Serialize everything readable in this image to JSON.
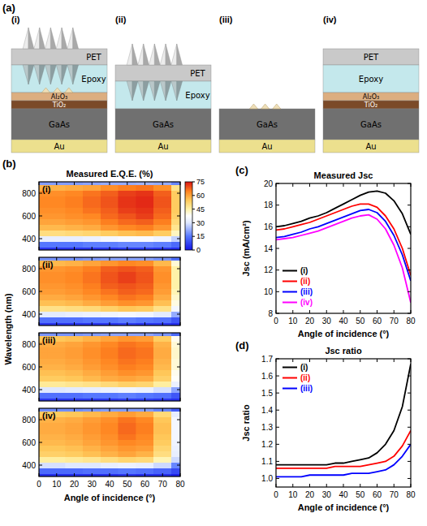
{
  "diagram": {
    "label": "(a)",
    "materials": [
      "PET",
      "Epoxy",
      "Al₂O₃",
      "TiO₂",
      "GaAs",
      "Au"
    ],
    "structures": [
      {
        "label": "(i)",
        "layers": [
          0,
          1,
          2,
          3,
          4,
          5
        ]
      },
      {
        "label": "(ii)",
        "layers": [
          0,
          1,
          4,
          5
        ]
      },
      {
        "label": "(iii)",
        "layers": [
          4,
          5
        ]
      },
      {
        "label": "(iv)",
        "layers": [
          0,
          1,
          2,
          3,
          4,
          5
        ]
      }
    ]
  },
  "chart_data": [
    {
      "type": "heatmap",
      "panel_label": "(b)",
      "title": "Measured E.Q.E. (%)",
      "subtitle": "(i)",
      "y_label": "Wavelength (nm)",
      "x": [
        0,
        10,
        20,
        30,
        40,
        50,
        60,
        70,
        80
      ],
      "y": [
        300,
        350,
        400,
        450,
        500,
        550,
        600,
        650,
        700,
        750,
        800,
        850,
        900
      ],
      "cells": [
        [
          5,
          5,
          5,
          5,
          5,
          6,
          6,
          5,
          4
        ],
        [
          15,
          15,
          15,
          16,
          16,
          17,
          17,
          16,
          13
        ],
        [
          32,
          32,
          32,
          33,
          35,
          36,
          36,
          34,
          27
        ],
        [
          50,
          50,
          51,
          52,
          54,
          56,
          57,
          54,
          43
        ],
        [
          57,
          57,
          58,
          59,
          62,
          64,
          65,
          62,
          48
        ],
        [
          60,
          60,
          61,
          62,
          65,
          67,
          68,
          65,
          51
        ],
        [
          62,
          62,
          63,
          64,
          67,
          69,
          71,
          67,
          53
        ],
        [
          63,
          63,
          64,
          66,
          68,
          71,
          72,
          68,
          54
        ],
        [
          64,
          64,
          65,
          67,
          69,
          72,
          73,
          69,
          54
        ],
        [
          64,
          64,
          65,
          67,
          69,
          72,
          73,
          69,
          54
        ],
        [
          63,
          63,
          64,
          66,
          68,
          71,
          72,
          68,
          54
        ],
        [
          58,
          58,
          59,
          60,
          63,
          65,
          66,
          63,
          49
        ],
        [
          20,
          20,
          20,
          21,
          22,
          22,
          23,
          22,
          17
        ]
      ],
      "xlim": [
        0,
        80
      ],
      "ylim": [
        300,
        900
      ],
      "xticks": [
        0,
        10,
        20,
        30,
        40,
        50,
        60,
        70,
        80
      ],
      "yticks": [
        400,
        600,
        800
      ],
      "tick_labels": "y",
      "colorbar": {
        "range": [
          0,
          75
        ],
        "ticks": [
          0,
          15,
          30,
          45,
          60,
          75
        ]
      }
    },
    {
      "type": "heatmap",
      "subtitle": "(ii)",
      "x": [
        0,
        10,
        20,
        30,
        40,
        50,
        60,
        70,
        80
      ],
      "y": [
        300,
        350,
        400,
        450,
        500,
        550,
        600,
        650,
        700,
        750,
        800,
        850,
        900
      ],
      "cells": [
        [
          5,
          5,
          5,
          5,
          5,
          6,
          5,
          5,
          4
        ],
        [
          14,
          14,
          14,
          15,
          15,
          16,
          15,
          14,
          10
        ],
        [
          31,
          31,
          32,
          33,
          34,
          35,
          34,
          31,
          22
        ],
        [
          49,
          49,
          50,
          51,
          53,
          55,
          54,
          49,
          35
        ],
        [
          56,
          56,
          57,
          59,
          61,
          63,
          62,
          56,
          40
        ],
        [
          59,
          59,
          60,
          62,
          64,
          66,
          65,
          59,
          42
        ],
        [
          61,
          61,
          62,
          64,
          66,
          68,
          67,
          61,
          44
        ],
        [
          62,
          62,
          63,
          65,
          68,
          69,
          68,
          62,
          45
        ],
        [
          63,
          63,
          64,
          66,
          69,
          71,
          69,
          63,
          45
        ],
        [
          63,
          63,
          64,
          66,
          69,
          71,
          69,
          63,
          45
        ],
        [
          62,
          62,
          63,
          65,
          68,
          69,
          68,
          62,
          45
        ],
        [
          57,
          57,
          58,
          60,
          62,
          64,
          63,
          57,
          41
        ],
        [
          19,
          19,
          19,
          20,
          21,
          21,
          21,
          19,
          14
        ]
      ],
      "xlim": [
        0,
        80
      ],
      "ylim": [
        300,
        900
      ],
      "xticks": [
        0,
        10,
        20,
        30,
        40,
        50,
        60,
        70,
        80
      ],
      "yticks": [
        400,
        600,
        800
      ],
      "tick_labels": "y"
    },
    {
      "type": "heatmap",
      "subtitle": "(iii)",
      "x": [
        0,
        10,
        20,
        30,
        40,
        50,
        60,
        70,
        80
      ],
      "y": [
        300,
        350,
        400,
        450,
        500,
        550,
        600,
        650,
        700,
        750,
        800,
        850,
        900
      ],
      "cells": [
        [
          5,
          5,
          5,
          5,
          5,
          6,
          6,
          5,
          4
        ],
        [
          14,
          14,
          14,
          15,
          15,
          16,
          15,
          14,
          10
        ],
        [
          30,
          30,
          31,
          32,
          33,
          34,
          33,
          29,
          21
        ],
        [
          47,
          47,
          48,
          49,
          51,
          53,
          52,
          46,
          33
        ],
        [
          54,
          54,
          55,
          57,
          59,
          60,
          59,
          53,
          38
        ],
        [
          56,
          56,
          57,
          59,
          61,
          63,
          62,
          55,
          39
        ],
        [
          58,
          58,
          59,
          61,
          63,
          65,
          64,
          57,
          41
        ],
        [
          59,
          59,
          60,
          62,
          64,
          66,
          65,
          58,
          41
        ],
        [
          60,
          60,
          61,
          63,
          65,
          67,
          66,
          59,
          42
        ],
        [
          60,
          60,
          61,
          63,
          65,
          67,
          66,
          59,
          42
        ],
        [
          59,
          59,
          60,
          62,
          64,
          66,
          65,
          58,
          41
        ],
        [
          55,
          55,
          56,
          58,
          60,
          62,
          61,
          54,
          39
        ],
        [
          19,
          19,
          19,
          20,
          21,
          21,
          21,
          19,
          13
        ]
      ],
      "xlim": [
        0,
        80
      ],
      "ylim": [
        300,
        900
      ],
      "xticks": [
        0,
        10,
        20,
        30,
        40,
        50,
        60,
        70,
        80
      ],
      "yticks": [
        400,
        600,
        800
      ],
      "tick_labels": "y"
    },
    {
      "type": "heatmap",
      "subtitle": "(iv)",
      "x_label": "Angle of incidence (°)",
      "x": [
        0,
        10,
        20,
        30,
        40,
        50,
        60,
        70,
        80
      ],
      "y": [
        300,
        350,
        400,
        450,
        500,
        550,
        600,
        650,
        700,
        750,
        800,
        850,
        900
      ],
      "cells": [
        [
          4,
          4,
          4,
          4,
          4,
          5,
          4,
          4,
          2
        ],
        [
          13,
          13,
          13,
          14,
          14,
          15,
          14,
          12,
          8
        ],
        [
          29,
          29,
          30,
          30,
          32,
          33,
          32,
          28,
          17
        ],
        [
          46,
          46,
          47,
          48,
          50,
          52,
          51,
          44,
          28
        ],
        [
          53,
          53,
          54,
          56,
          58,
          60,
          58,
          50,
          32
        ],
        [
          55,
          55,
          56,
          58,
          60,
          62,
          61,
          52,
          33
        ],
        [
          57,
          57,
          58,
          60,
          62,
          64,
          63,
          54,
          34
        ],
        [
          58,
          58,
          59,
          61,
          63,
          66,
          64,
          55,
          35
        ],
        [
          59,
          59,
          60,
          62,
          64,
          67,
          65,
          56,
          35
        ],
        [
          59,
          59,
          60,
          62,
          64,
          67,
          65,
          56,
          35
        ],
        [
          58,
          58,
          59,
          61,
          63,
          66,
          64,
          55,
          35
        ],
        [
          54,
          54,
          55,
          57,
          59,
          61,
          59,
          51,
          32
        ],
        [
          18,
          18,
          18,
          19,
          20,
          20,
          20,
          17,
          11
        ]
      ],
      "xlim": [
        0,
        80
      ],
      "ylim": [
        300,
        900
      ],
      "xticks": [
        0,
        10,
        20,
        30,
        40,
        50,
        60,
        70,
        80
      ],
      "yticks": [
        400,
        600,
        800
      ]
    },
    {
      "type": "line",
      "panel_label": "(c)",
      "title": "Measured Jsc",
      "x_label": "Angle of incidence (°)",
      "y_label": "Jsc (mA/cm²)",
      "x": [
        0,
        5,
        10,
        15,
        20,
        25,
        30,
        35,
        40,
        45,
        50,
        55,
        60,
        65,
        70,
        75,
        80
      ],
      "series": [
        {
          "name": "(i)",
          "color": "#000000",
          "values": [
            16.0,
            16.1,
            16.3,
            16.5,
            16.8,
            17.0,
            17.3,
            17.7,
            18.1,
            18.5,
            18.9,
            19.2,
            19.3,
            19.1,
            18.4,
            17.2,
            15.3
          ]
        },
        {
          "name": "(ii)",
          "color": "#ff0000",
          "values": [
            15.7,
            15.8,
            16.0,
            16.2,
            16.4,
            16.7,
            17.0,
            17.3,
            17.6,
            17.9,
            18.1,
            18.1,
            17.8,
            17.0,
            15.8,
            14.0,
            11.5
          ]
        },
        {
          "name": "(iii)",
          "color": "#0000ff",
          "values": [
            15.0,
            15.1,
            15.3,
            15.5,
            15.8,
            16.0,
            16.3,
            16.6,
            16.9,
            17.2,
            17.5,
            17.6,
            17.3,
            16.5,
            15.2,
            13.4,
            11.0
          ]
        },
        {
          "name": "(iv)",
          "color": "#ff00ff",
          "values": [
            14.8,
            14.9,
            15.0,
            15.2,
            15.4,
            15.6,
            15.9,
            16.2,
            16.5,
            16.8,
            17.0,
            17.1,
            16.7,
            15.8,
            14.3,
            12.2,
            9.0
          ]
        }
      ],
      "xlim": [
        0,
        80
      ],
      "ylim": [
        8,
        20
      ],
      "xticks": [
        0,
        10,
        20,
        30,
        40,
        50,
        60,
        70,
        80
      ],
      "yticks": [
        8,
        10,
        12,
        14,
        16,
        18,
        20
      ],
      "legend": "lower left"
    },
    {
      "type": "line",
      "panel_label": "(d)",
      "title": "Jsc ratio",
      "x_label": "Angle of incidence (°)",
      "y_label": "Jsc ratio",
      "x": [
        0,
        5,
        10,
        15,
        20,
        25,
        30,
        35,
        40,
        45,
        50,
        55,
        60,
        65,
        70,
        75,
        80
      ],
      "series": [
        {
          "name": "(i)",
          "color": "#000000",
          "values": [
            1.08,
            1.08,
            1.08,
            1.08,
            1.08,
            1.08,
            1.08,
            1.09,
            1.09,
            1.1,
            1.11,
            1.12,
            1.15,
            1.2,
            1.28,
            1.42,
            1.67
          ]
        },
        {
          "name": "(ii)",
          "color": "#ff0000",
          "values": [
            1.06,
            1.06,
            1.06,
            1.06,
            1.06,
            1.06,
            1.06,
            1.07,
            1.07,
            1.07,
            1.07,
            1.08,
            1.09,
            1.1,
            1.13,
            1.19,
            1.28
          ]
        },
        {
          "name": "(iii)",
          "color": "#0000ff",
          "values": [
            1.01,
            1.01,
            1.01,
            1.01,
            1.02,
            1.02,
            1.02,
            1.02,
            1.02,
            1.03,
            1.03,
            1.03,
            1.04,
            1.05,
            1.08,
            1.13,
            1.2
          ]
        }
      ],
      "xlim": [
        0,
        80
      ],
      "ylim": [
        0.95,
        1.7
      ],
      "xticks": [
        0,
        10,
        20,
        30,
        40,
        50,
        60,
        70,
        80
      ],
      "yticks": [
        {
          "value": 1,
          "label": "1.0"
        },
        1.1,
        1.2,
        1.3,
        1.4,
        1.5,
        1.6,
        1.7
      ],
      "legend": "upper left"
    }
  ]
}
